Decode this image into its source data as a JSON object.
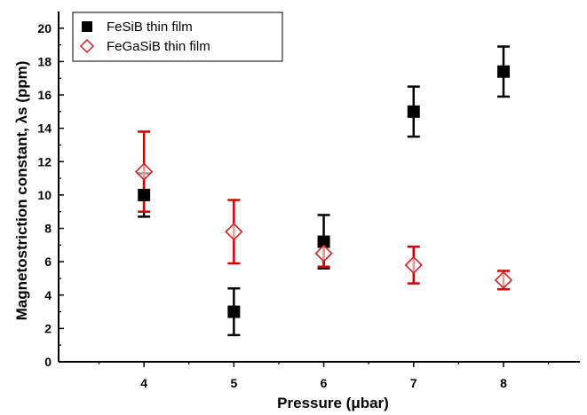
{
  "chart_data": {
    "type": "scatter",
    "xlabel": "Pressure (μbar)",
    "ylabel": "Magnetostriction constant, λs (ppm)",
    "xlim": [
      3.05,
      8.85
    ],
    "ylim": [
      0,
      21
    ],
    "xticks": [
      4,
      5,
      6,
      7,
      8
    ],
    "yticks": [
      0,
      2,
      4,
      6,
      8,
      10,
      12,
      14,
      16,
      18,
      20
    ],
    "grid": false,
    "legend": "top-left",
    "series": [
      {
        "name": "FeSiB thin film",
        "marker": "filled-square",
        "color": "#000000",
        "errorbar_color": "#000000",
        "points": [
          {
            "x": 4,
            "y": 10.0,
            "err": 1.3
          },
          {
            "x": 5,
            "y": 3.0,
            "err": 1.4
          },
          {
            "x": 6,
            "y": 7.2,
            "err": 1.6
          },
          {
            "x": 7,
            "y": 15.0,
            "err": 1.5
          },
          {
            "x": 8,
            "y": 17.4,
            "err": 1.5
          }
        ]
      },
      {
        "name": "FeGaSiB  thin film",
        "marker": "open-diamond",
        "color": "#cc2222",
        "errorbar_color": "#cc0000",
        "points": [
          {
            "x": 4,
            "y": 11.4,
            "err": 2.4
          },
          {
            "x": 5,
            "y": 7.8,
            "err": 1.9
          },
          {
            "x": 6,
            "y": 6.5,
            "err": 0.8
          },
          {
            "x": 7,
            "y": 5.8,
            "err": 1.1
          },
          {
            "x": 8,
            "y": 4.9,
            "err": 0.55
          }
        ]
      }
    ]
  }
}
